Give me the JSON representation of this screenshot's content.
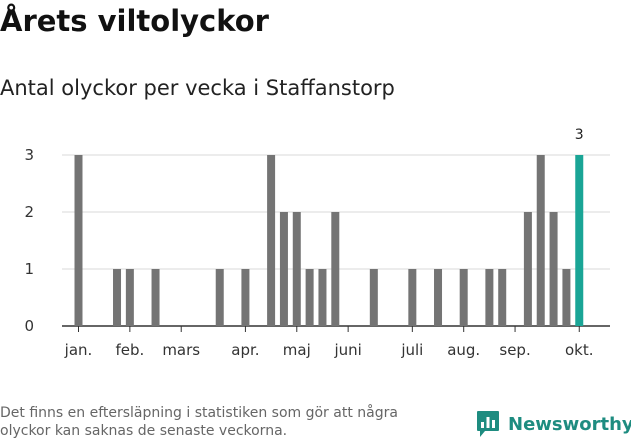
{
  "title": "Årets viltolyckor",
  "subtitle": "Antal olyckor per vecka i Staffanstorp",
  "footnote": "Det finns en eftersläpning i statistiken som gör att några olyckor kan saknas de senaste veckorna.",
  "brand": {
    "name": "Newsworthy",
    "icon": "newsworthy-logo-icon",
    "color": "#1e8c80"
  },
  "chart_data": {
    "type": "bar",
    "title": "",
    "xlabel": "",
    "ylabel": "",
    "ylim": [
      0,
      3
    ],
    "yticks": [
      0,
      1,
      2,
      3
    ],
    "grid": true,
    "x_tick_labels": [
      {
        "label": "jan.",
        "week": 1
      },
      {
        "label": "feb.",
        "week": 5
      },
      {
        "label": "mars",
        "week": 9
      },
      {
        "label": "apr.",
        "week": 14
      },
      {
        "label": "maj",
        "week": 18
      },
      {
        "label": "juni",
        "week": 22
      },
      {
        "label": "juli",
        "week": 27
      },
      {
        "label": "aug.",
        "week": 31
      },
      {
        "label": "sep.",
        "week": 35
      },
      {
        "label": "okt.",
        "week": 40
      }
    ],
    "weeks": [
      1,
      2,
      3,
      4,
      5,
      6,
      7,
      8,
      9,
      10,
      11,
      12,
      13,
      14,
      15,
      16,
      17,
      18,
      19,
      20,
      21,
      22,
      23,
      24,
      25,
      26,
      27,
      28,
      29,
      30,
      31,
      32,
      33,
      34,
      35,
      36,
      37,
      38,
      39,
      40
    ],
    "values": [
      3,
      0,
      0,
      1,
      1,
      0,
      1,
      0,
      0,
      0,
      0,
      1,
      0,
      1,
      0,
      3,
      2,
      2,
      1,
      1,
      2,
      0,
      0,
      1,
      0,
      0,
      1,
      0,
      1,
      0,
      1,
      0,
      1,
      1,
      0,
      2,
      3,
      2,
      1,
      3
    ],
    "bar_color": "#747474",
    "highlight_color": "#1aa596",
    "highlight_index": 39,
    "data_labels": [
      {
        "index": 39,
        "text": "3"
      }
    ]
  }
}
